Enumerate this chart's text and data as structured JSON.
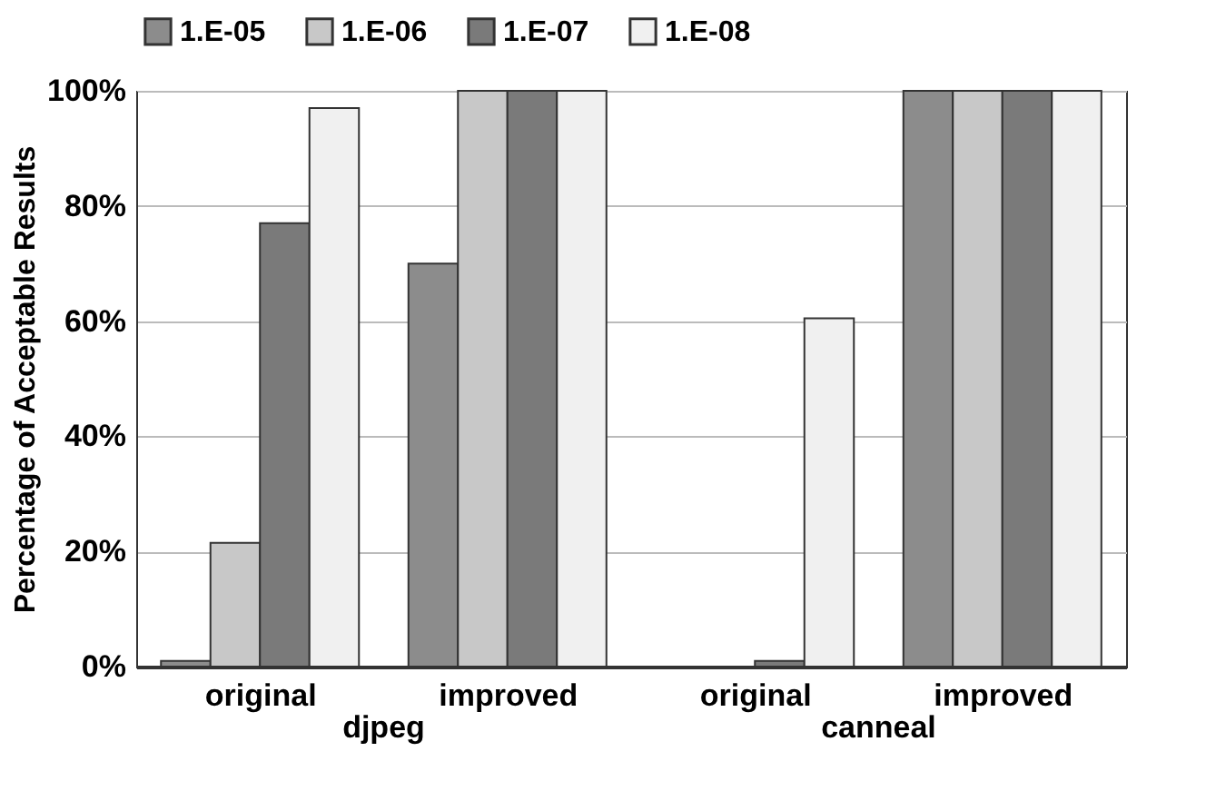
{
  "chart_data": {
    "type": "bar",
    "ylabel": "Percentage of Acceptable Results",
    "categories": [
      "original",
      "improved",
      "original",
      "improved"
    ],
    "annotations": [
      "djpeg",
      "canneal"
    ],
    "series": [
      {
        "name": "1.E-05",
        "color": "#8c8c8c",
        "values": [
          1,
          70,
          null,
          100
        ]
      },
      {
        "name": "1.E-06",
        "color": "#c8c8c8",
        "values": [
          21.5,
          100,
          null,
          100
        ]
      },
      {
        "name": "1.E-07",
        "color": "#7a7a7a",
        "values": [
          77,
          100,
          1,
          100
        ]
      },
      {
        "name": "1.E-08",
        "color": "#f0f0f0",
        "values": [
          97,
          100,
          60.5,
          100
        ]
      }
    ],
    "ylim": [
      0,
      100
    ],
    "yticks": [
      {
        "value": 0,
        "label": "0%"
      },
      {
        "value": 20,
        "label": "20%"
      },
      {
        "value": 40,
        "label": "40%"
      },
      {
        "value": 60,
        "label": "60%"
      },
      {
        "value": 80,
        "label": "80%"
      },
      {
        "value": 100,
        "label": "100%"
      }
    ],
    "grid": "y",
    "legend": "top"
  }
}
